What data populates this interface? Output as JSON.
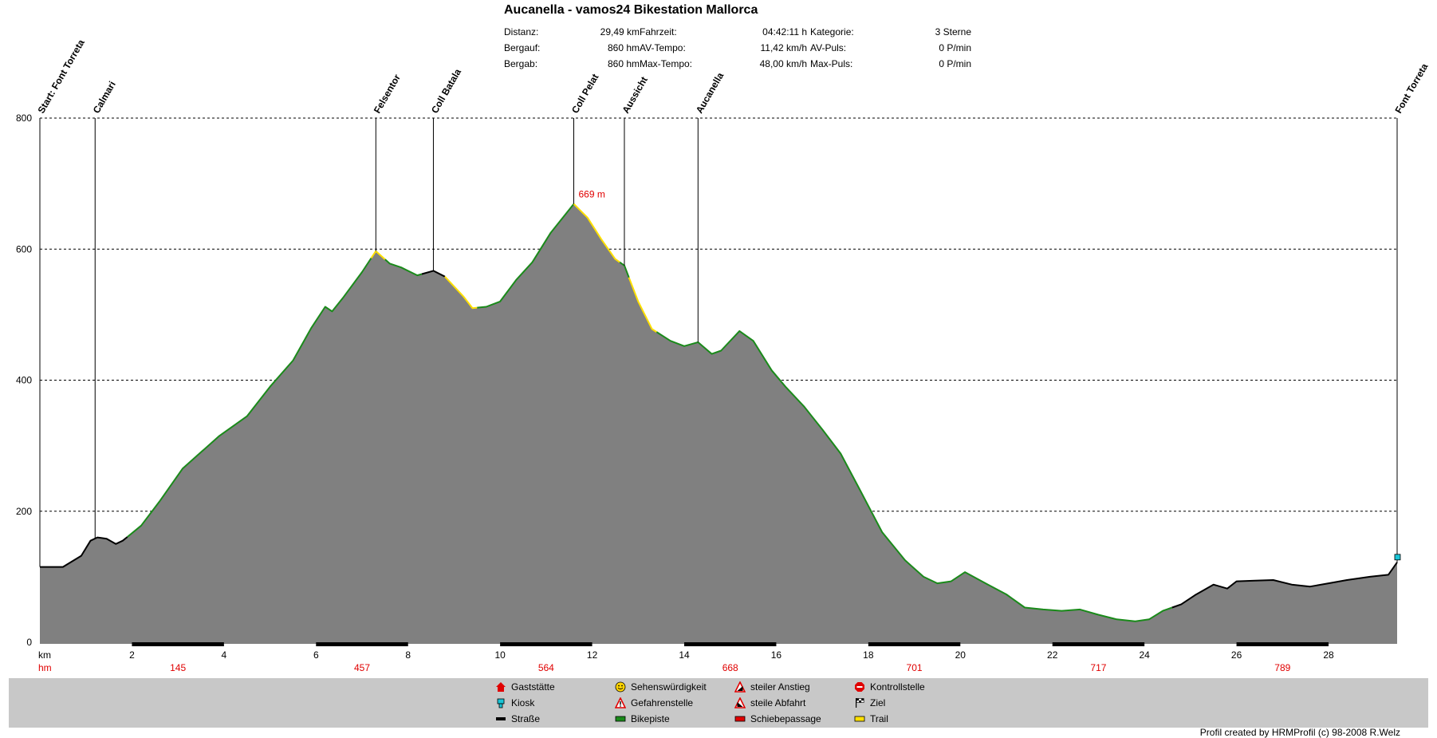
{
  "title": "Aucanella - vamos24 Bikestation Mallorca",
  "stats": [
    {
      "label": "Distanz:",
      "value": "29,49 km"
    },
    {
      "label": "Bergauf:",
      "value": "860 hm"
    },
    {
      "label": "Bergab:",
      "value": "860 hm"
    },
    {
      "label": "Fahrzeit:",
      "value": "04:42:11 h"
    },
    {
      "label": "AV-Tempo:",
      "value": "11,42 km/h"
    },
    {
      "label": "Max-Tempo:",
      "value": "48,00 km/h"
    },
    {
      "label": "Kategorie:",
      "value": "3 Sterne"
    },
    {
      "label": "AV-Puls:",
      "value": "0 P/min"
    },
    {
      "label": "Max-Puls:",
      "value": "0 P/min"
    }
  ],
  "legend": [
    {
      "label": "Gaststätte",
      "icon": "house-icon",
      "color": "#e00000"
    },
    {
      "label": "Kiosk",
      "icon": "kiosk-icon",
      "color": "#19c4d6"
    },
    {
      "label": "Straße",
      "icon": "road-icon",
      "color": "#000000"
    },
    {
      "label": "Sehenswürdigkeit",
      "icon": "smiley-icon",
      "color": "#ffd400"
    },
    {
      "label": "Gefahrenstelle",
      "icon": "warning-icon",
      "color": "#e00000"
    },
    {
      "label": "Bikepiste",
      "icon": "bikepiste-icon",
      "color": "#1a8a1a"
    },
    {
      "label": "steiler Anstieg",
      "icon": "steep-climb-icon",
      "color": "#e00000"
    },
    {
      "label": "steile Abfahrt",
      "icon": "steep-descent-icon",
      "color": "#e00000"
    },
    {
      "label": "Schiebepassage",
      "icon": "push-section-icon",
      "color": "#e00000"
    },
    {
      "label": "Kontrollstelle",
      "icon": "stop-icon",
      "color": "#e00000"
    },
    {
      "label": "Ziel",
      "icon": "finish-flag-icon",
      "color": "#000000"
    },
    {
      "label": "Trail",
      "icon": "trail-icon",
      "color": "#ffe000"
    }
  ],
  "credit": "Profil created by HRMProfil (c) 98-2008 R.Welz",
  "colors": {
    "fill": "#808080",
    "bikepiste": "#1a8a1a",
    "trail": "#ffe000",
    "road": "#000000",
    "accent": "#e00000",
    "kiosk": "#19c4d6"
  },
  "chart_data": {
    "type": "area",
    "x_unit": "km",
    "cum_label": "hm",
    "xlim": [
      0,
      29.49
    ],
    "ylim": [
      0,
      800
    ],
    "y_ticks": [
      0,
      200,
      400,
      600,
      800
    ],
    "x_ticks": [
      2,
      4,
      6,
      8,
      10,
      12,
      14,
      16,
      18,
      20,
      22,
      24,
      26,
      28
    ],
    "climb_ticks": [
      {
        "x": 3,
        "label": "145"
      },
      {
        "x": 7,
        "label": "457"
      },
      {
        "x": 11,
        "label": "564"
      },
      {
        "x": 15,
        "label": "668"
      },
      {
        "x": 19,
        "label": "701"
      },
      {
        "x": 23,
        "label": "717"
      },
      {
        "x": 27,
        "label": "789"
      }
    ],
    "max_label": {
      "x": 11.6,
      "y": 669,
      "text": "669 m"
    },
    "grid": "dashed horizontal",
    "waypoints": [
      {
        "x": 0,
        "label": "Start: Font Torreta"
      },
      {
        "x": 1.2,
        "label": "Calmari"
      },
      {
        "x": 7.3,
        "label": "Felsentor"
      },
      {
        "x": 8.55,
        "label": "Coll Batala"
      },
      {
        "x": 11.6,
        "label": "Coll Pelat"
      },
      {
        "x": 12.7,
        "label": "Aussicht"
      },
      {
        "x": 14.3,
        "label": "Aucanella"
      },
      {
        "x": 29.49,
        "label": "Font Torreta"
      }
    ],
    "profile": [
      [
        0,
        115
      ],
      [
        0.5,
        115
      ],
      [
        0.9,
        132
      ],
      [
        1.1,
        155
      ],
      [
        1.25,
        160
      ],
      [
        1.45,
        158
      ],
      [
        1.65,
        150
      ],
      [
        1.8,
        155
      ],
      [
        2.2,
        178
      ],
      [
        2.6,
        215
      ],
      [
        3.1,
        265
      ],
      [
        3.5,
        290
      ],
      [
        3.9,
        315
      ],
      [
        4.5,
        345
      ],
      [
        5.0,
        390
      ],
      [
        5.5,
        430
      ],
      [
        5.9,
        480
      ],
      [
        6.2,
        512
      ],
      [
        6.35,
        505
      ],
      [
        6.6,
        527
      ],
      [
        7.0,
        565
      ],
      [
        7.3,
        597
      ],
      [
        7.6,
        578
      ],
      [
        7.85,
        572
      ],
      [
        8.2,
        560
      ],
      [
        8.55,
        567
      ],
      [
        8.8,
        558
      ],
      [
        9.2,
        528
      ],
      [
        9.4,
        510
      ],
      [
        9.7,
        512
      ],
      [
        10.0,
        520
      ],
      [
        10.35,
        553
      ],
      [
        10.7,
        580
      ],
      [
        11.1,
        625
      ],
      [
        11.6,
        669
      ],
      [
        11.9,
        648
      ],
      [
        12.2,
        615
      ],
      [
        12.5,
        585
      ],
      [
        12.7,
        575
      ],
      [
        13.0,
        520
      ],
      [
        13.3,
        478
      ],
      [
        13.7,
        460
      ],
      [
        14.0,
        452
      ],
      [
        14.3,
        458
      ],
      [
        14.6,
        440
      ],
      [
        14.8,
        445
      ],
      [
        15.2,
        475
      ],
      [
        15.5,
        460
      ],
      [
        15.9,
        415
      ],
      [
        16.2,
        390
      ],
      [
        16.6,
        360
      ],
      [
        17.0,
        325
      ],
      [
        17.4,
        288
      ],
      [
        17.8,
        235
      ],
      [
        18.3,
        168
      ],
      [
        18.8,
        125
      ],
      [
        19.2,
        100
      ],
      [
        19.5,
        90
      ],
      [
        19.8,
        93
      ],
      [
        20.1,
        107
      ],
      [
        20.6,
        88
      ],
      [
        21.0,
        73
      ],
      [
        21.4,
        53
      ],
      [
        21.8,
        50
      ],
      [
        22.2,
        48
      ],
      [
        22.6,
        50
      ],
      [
        23.0,
        42
      ],
      [
        23.4,
        35
      ],
      [
        23.8,
        32
      ],
      [
        24.1,
        35
      ],
      [
        24.4,
        48
      ],
      [
        24.8,
        58
      ],
      [
        25.1,
        72
      ],
      [
        25.5,
        88
      ],
      [
        25.8,
        82
      ],
      [
        26.0,
        93
      ],
      [
        26.4,
        94
      ],
      [
        26.8,
        95
      ],
      [
        27.2,
        88
      ],
      [
        27.6,
        85
      ],
      [
        28.0,
        90
      ],
      [
        28.4,
        95
      ],
      [
        28.9,
        100
      ],
      [
        29.3,
        103
      ],
      [
        29.49,
        122
      ]
    ],
    "surfaces": [
      {
        "x": [
          0,
          1.9
        ],
        "type": "Straße"
      },
      {
        "x": [
          1.9,
          7.2
        ],
        "type": "Bikepiste"
      },
      {
        "x": [
          7.2,
          7.5
        ],
        "type": "Trail"
      },
      {
        "x": [
          7.5,
          8.3
        ],
        "type": "Bikepiste"
      },
      {
        "x": [
          8.3,
          8.8
        ],
        "type": "Straße"
      },
      {
        "x": [
          8.8,
          9.5
        ],
        "type": "Trail"
      },
      {
        "x": [
          9.5,
          11.6
        ],
        "type": "Bikepiste"
      },
      {
        "x": [
          11.6,
          12.6
        ],
        "type": "Trail"
      },
      {
        "x": [
          12.6,
          12.8
        ],
        "type": "Bikepiste"
      },
      {
        "x": [
          12.8,
          13.4
        ],
        "type": "Trail"
      },
      {
        "x": [
          13.4,
          24.6
        ],
        "type": "Bikepiste"
      },
      {
        "x": [
          24.6,
          29.49
        ],
        "type": "Straße"
      }
    ]
  }
}
